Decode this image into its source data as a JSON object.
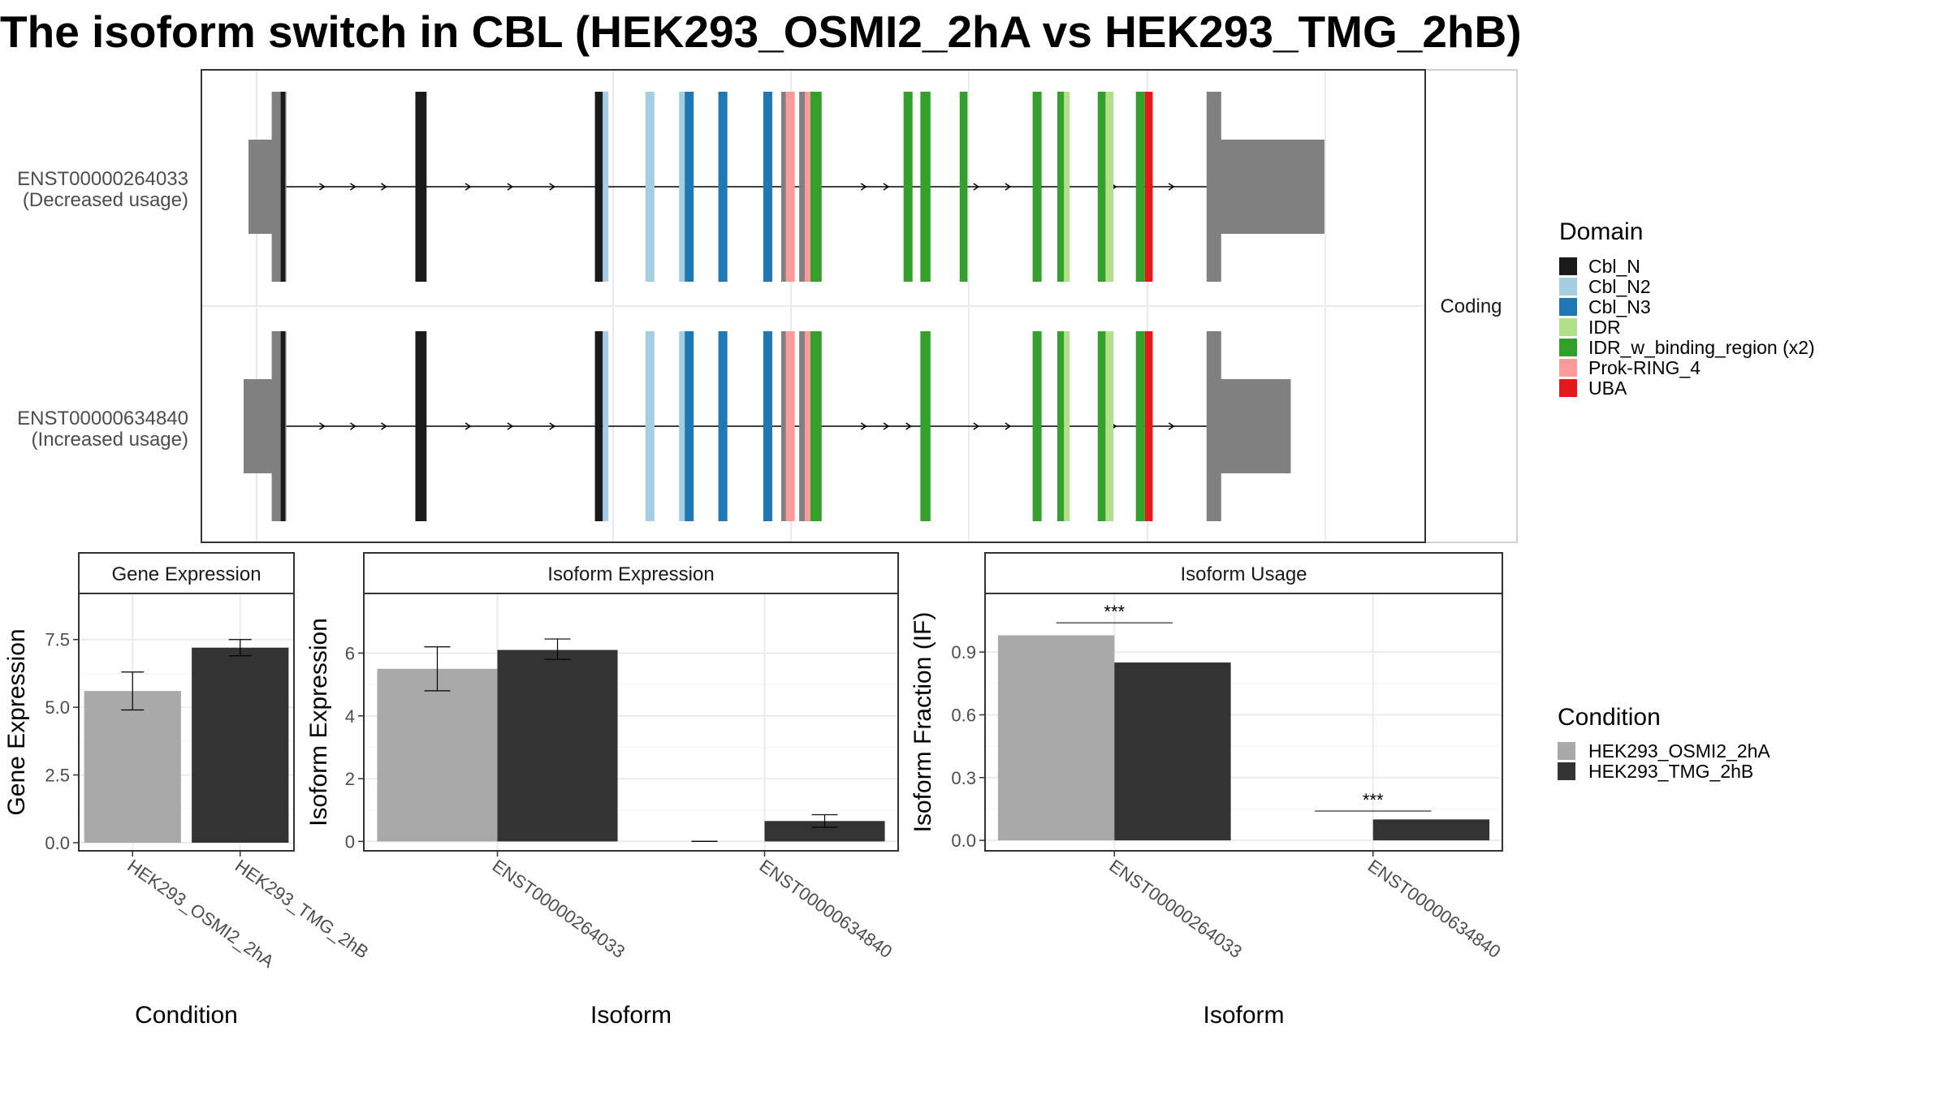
{
  "title": "The isoform switch in CBL (HEK293_OSMI2_2hA vs HEK293_TMG_2hB)",
  "chart_data": [
    {
      "type": "gene-structure",
      "facet_label": "Coding",
      "x_range": [
        0,
        1000
      ],
      "isoforms": [
        {
          "name": "ENST00000264033",
          "usage": "(Decreased usage)",
          "utr5": [
            [
              0,
              15
            ]
          ],
          "cds": [
            [
              15,
              28
            ],
            [
              140,
              150
            ],
            [
              300,
              307
            ],
            [
              500,
              510
            ],
            [
              600,
              612
            ],
            [
              725,
              737
            ],
            [
              840,
              852
            ]
          ],
          "utr3": [
            [
              850,
              950
            ]
          ],
          "domains": [
            {
              "name": "Cbl_N",
              "ranges": [
                [
                  20,
                  24
                ],
                [
                  140,
                  150
                ],
                [
                  300,
                  307
                ]
              ]
            },
            {
              "name": "Cbl_N2",
              "ranges": [
                [
                  307,
                  312
                ],
                [
                  345,
                  353
                ],
                [
                  375,
                  380
                ]
              ]
            },
            {
              "name": "Cbl_N3",
              "ranges": [
                [
                  380,
                  388
                ],
                [
                  410,
                  418
                ],
                [
                  450,
                  458
                ]
              ]
            },
            {
              "name": "Prok-RING_4",
              "ranges": [
                [
                  470,
                  478
                ],
                [
                  487,
                  492
                ]
              ]
            },
            {
              "name": "IDR_w_binding_region (x2)",
              "ranges": [
                [
                  492,
                  502
                ],
                [
                  575,
                  583
                ],
                [
                  590,
                  599
                ],
                [
                  625,
                  632
                ],
                [
                  690,
                  698
                ],
                [
                  712,
                  718
                ],
                [
                  748,
                  755
                ],
                [
                  782,
                  790
                ]
              ]
            },
            {
              "name": "IDR",
              "ranges": [
                [
                  718,
                  723
                ],
                [
                  755,
                  762
                ]
              ]
            },
            {
              "name": "UBA",
              "ranges": [
                [
                  790,
                  797
                ]
              ]
            }
          ]
        },
        {
          "name": "ENST00000634840",
          "usage": "(Increased usage)",
          "utr5": [
            [
              0,
              15
            ]
          ],
          "cds": [
            [
              15,
              28
            ],
            [
              140,
              150
            ],
            [
              300,
              307
            ],
            [
              500,
              510
            ],
            [
              600,
              612
            ],
            [
              725,
              737
            ],
            [
              840,
              852
            ]
          ],
          "utr3": [
            [
              850,
              920
            ]
          ],
          "domains": [
            {
              "name": "Cbl_N",
              "ranges": [
                [
                  20,
                  24
                ],
                [
                  140,
                  150
                ],
                [
                  300,
                  307
                ]
              ]
            },
            {
              "name": "Cbl_N2",
              "ranges": [
                [
                  307,
                  312
                ],
                [
                  345,
                  353
                ],
                [
                  375,
                  380
                ]
              ]
            },
            {
              "name": "Cbl_N3",
              "ranges": [
                [
                  380,
                  388
                ],
                [
                  410,
                  418
                ],
                [
                  450,
                  458
                ]
              ]
            },
            {
              "name": "Prok-RING_4",
              "ranges": [
                [
                  470,
                  478
                ],
                [
                  487,
                  492
                ]
              ]
            },
            {
              "name": "IDR_w_binding_region (x2)",
              "ranges": [
                [
                  492,
                  502
                ],
                [
                  590,
                  599
                ],
                [
                  690,
                  698
                ],
                [
                  712,
                  718
                ],
                [
                  748,
                  755
                ],
                [
                  782,
                  790
                ]
              ]
            },
            {
              "name": "IDR",
              "ranges": [
                [
                  718,
                  723
                ],
                [
                  755,
                  762
                ]
              ]
            },
            {
              "name": "UBA",
              "ranges": [
                [
                  790,
                  797
                ]
              ]
            }
          ]
        }
      ]
    },
    {
      "type": "bar",
      "panel": "Gene Expression",
      "xlabel": "Condition",
      "ylabel": "Gene Expression",
      "ylim": [
        -0.3,
        9.2
      ],
      "yticks": [
        0.0,
        2.5,
        5.0,
        7.5
      ],
      "ytick_labels": [
        "0.0",
        "2.5",
        "5.0",
        "7.5"
      ],
      "categories": [
        "HEK293_OSMI2_2hA",
        "HEK293_TMG_2hB"
      ],
      "values": [
        5.6,
        7.2
      ],
      "error": [
        [
          4.9,
          6.3
        ],
        [
          6.9,
          7.5
        ]
      ],
      "grid": true
    },
    {
      "type": "bar",
      "panel": "Isoform Expression",
      "xlabel": "Isoform",
      "ylabel": "Isoform Expression",
      "ylim": [
        -0.3,
        7.9
      ],
      "yticks": [
        0,
        2,
        4,
        6
      ],
      "ytick_labels": [
        "0",
        "2",
        "4",
        "6"
      ],
      "categories": [
        "ENST00000264033",
        "ENST00000634840"
      ],
      "series": [
        {
          "name": "HEK293_OSMI2_2hA",
          "values": [
            5.5,
            0.0
          ],
          "error": [
            [
              4.8,
              6.2
            ],
            [
              0.0,
              0.0
            ]
          ]
        },
        {
          "name": "HEK293_TMG_2hB",
          "values": [
            6.1,
            0.65
          ],
          "error": [
            [
              5.8,
              6.45
            ],
            [
              0.45,
              0.85
            ]
          ]
        }
      ],
      "grid": true
    },
    {
      "type": "bar",
      "panel": "Isoform Usage",
      "xlabel": "Isoform",
      "ylabel": "Isoform Fraction (IF)",
      "ylim": [
        -0.05,
        1.18
      ],
      "yticks": [
        0.0,
        0.3,
        0.6,
        0.9
      ],
      "ytick_labels": [
        "0.0",
        "0.3",
        "0.6",
        "0.9"
      ],
      "categories": [
        "ENST00000264033",
        "ENST00000634840"
      ],
      "series": [
        {
          "name": "HEK293_OSMI2_2hA",
          "values": [
            0.98,
            0.0
          ]
        },
        {
          "name": "HEK293_TMG_2hB",
          "values": [
            0.85,
            0.1
          ]
        }
      ],
      "significance": [
        {
          "category": "ENST00000264033",
          "label": "***",
          "y": 1.04
        },
        {
          "category": "ENST00000634840",
          "label": "***",
          "y": 0.14
        }
      ],
      "grid": true
    }
  ],
  "legends": {
    "domain": {
      "title": "Domain",
      "entries": [
        {
          "label": "Cbl_N",
          "color": "#1a1a1a"
        },
        {
          "label": "Cbl_N2",
          "color": "#a6cee3"
        },
        {
          "label": "Cbl_N3",
          "color": "#1f78b4"
        },
        {
          "label": "IDR",
          "color": "#b2df8a"
        },
        {
          "label": "IDR_w_binding_region (x2)",
          "color": "#33a02c"
        },
        {
          "label": "Prok-RING_4",
          "color": "#fb9a99"
        },
        {
          "label": "UBA",
          "color": "#e31a1c"
        }
      ]
    },
    "condition": {
      "title": "Condition",
      "entries": [
        {
          "label": "HEK293_OSMI2_2hA",
          "color": "#a9a9a9"
        },
        {
          "label": "HEK293_TMG_2hB",
          "color": "#333333"
        }
      ]
    }
  },
  "colors": {
    "utr": "#808080",
    "intron": "#000000",
    "panel_border": "#333333",
    "grid": "#ebebeb",
    "strip_background": "#ffffff"
  }
}
